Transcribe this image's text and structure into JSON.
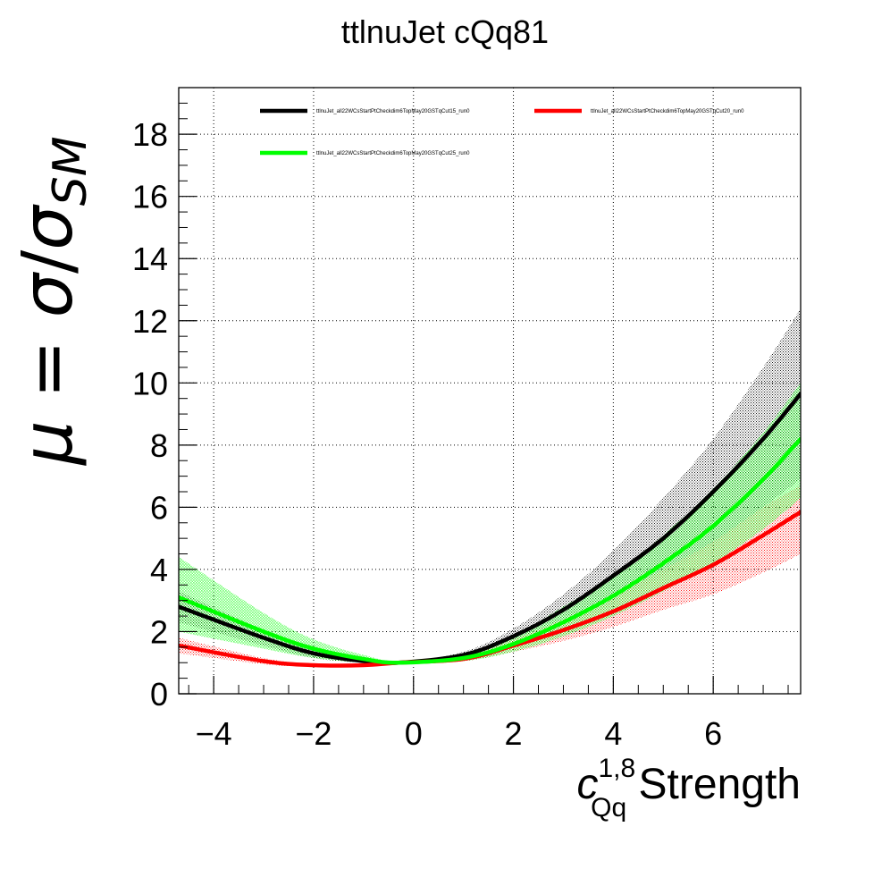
{
  "chart_data": {
    "type": "line",
    "title": "ttlnuJet cQq81",
    "xlabel": {
      "symbol": "c",
      "sup": "1,8",
      "sub": "Qq",
      "text": " Strength"
    },
    "ylabel": {
      "mu": "μ",
      "eq": " = ",
      "sigma": "σ",
      "slash": "/",
      "sigma2": "σ",
      "sub": "SM"
    },
    "xlim": [
      -4.7,
      7.75
    ],
    "ylim": [
      0,
      19.5
    ],
    "xticks": [
      -4,
      -2,
      0,
      2,
      4,
      6
    ],
    "xtick_labels": [
      "−4",
      "−2",
      "0",
      "2",
      "4",
      "6"
    ],
    "yticks": [
      0,
      2,
      4,
      6,
      8,
      10,
      12,
      14,
      16,
      18
    ],
    "ytick_labels": [
      "0",
      "2",
      "4",
      "6",
      "8",
      "10",
      "12",
      "14",
      "16",
      "18"
    ],
    "grid": true,
    "legend_position": "top",
    "series": [
      {
        "name": "ttlnuJet_all22WCsStartPtCheckdim6TopMay20GSTqCut15_run0",
        "color": "#000000",
        "x": [
          -4.7,
          -3,
          -2,
          -1,
          -0.3,
          1,
          2,
          3,
          4,
          5,
          6,
          7,
          7.75
        ],
        "y": [
          2.8,
          1.8,
          1.3,
          1.05,
          1.0,
          1.25,
          1.85,
          2.7,
          3.8,
          5.0,
          6.5,
          8.2,
          9.65
        ],
        "band_low": [
          2.3,
          1.55,
          1.15,
          1.0,
          1.0,
          1.15,
          1.55,
          2.15,
          2.9,
          3.8,
          4.8,
          6.0,
          6.9
        ],
        "band_high": [
          3.3,
          2.05,
          1.45,
          1.1,
          1.0,
          1.35,
          2.1,
          3.2,
          4.6,
          6.3,
          8.2,
          10.5,
          12.4
        ]
      },
      {
        "name": "ttlnuJet_all22WCsStartPtCheckdim6TopMay20GSTqCut20_run0",
        "color": "#ff0000",
        "x": [
          -4.7,
          -3,
          -2,
          -1,
          -0.3,
          1,
          2,
          3,
          4,
          5,
          6,
          7,
          7.75
        ],
        "y": [
          1.55,
          1.05,
          0.92,
          0.92,
          1.0,
          1.12,
          1.55,
          2.05,
          2.65,
          3.4,
          4.15,
          5.1,
          5.85
        ],
        "band_low": [
          1.3,
          0.95,
          0.88,
          0.9,
          1.0,
          1.05,
          1.35,
          1.7,
          2.15,
          2.7,
          3.2,
          3.9,
          4.5
        ],
        "band_high": [
          1.8,
          1.15,
          0.96,
          0.94,
          1.0,
          1.2,
          1.75,
          2.4,
          3.15,
          4.0,
          4.9,
          6.0,
          6.7
        ]
      },
      {
        "name": "ttlnuJet_all22WCsStartPtCheckdim6TopMay20GSTqCut25_run0",
        "color": "#00ff00",
        "x": [
          -4.7,
          -3,
          -2,
          -1,
          -0.3,
          1,
          2,
          3,
          4,
          5,
          6,
          7,
          7.75
        ],
        "y": [
          3.1,
          2.0,
          1.45,
          1.12,
          1.0,
          1.15,
          1.6,
          2.3,
          3.15,
          4.2,
          5.4,
          6.9,
          8.2
        ],
        "band_low": [
          2.0,
          1.45,
          1.15,
          1.0,
          0.95,
          1.05,
          1.35,
          1.85,
          2.5,
          3.3,
          4.2,
          5.3,
          6.3
        ],
        "band_high": [
          4.4,
          2.6,
          1.75,
          1.25,
          1.05,
          1.25,
          1.85,
          2.8,
          3.8,
          5.1,
          6.6,
          8.4,
          10.0
        ]
      }
    ]
  }
}
